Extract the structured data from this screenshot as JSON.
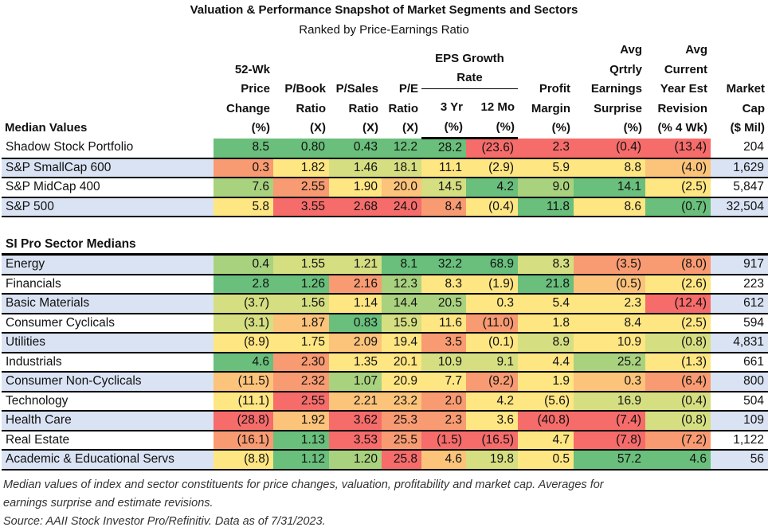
{
  "title": "Valuation & Performance Snapshot of Market Segments and Sectors",
  "subtitle": "Ranked by Price-Earnings Ratio",
  "chart_data": {
    "type": "table",
    "row_header_label": "Median Values",
    "columns": [
      "52-Wk\nPrice\nChange\n(%)",
      "P/Book\nRatio\n(X)",
      "P/Sales\nRatio\n(X)",
      "P/E\nRatio\n(X)",
      "3 Yr\n(%)",
      "12 Mo\n(%)",
      "Profit\nMargin\n(%)",
      "Avg\nQrtrly\nEarnings\nSurprise\n(%)",
      "Avg\nCurrent\nYear Est\nRevision\n(% 4 Wk)",
      "Market\nCap\n($ Mil)"
    ],
    "eps_group_label": "EPS Growth\nRate",
    "palette": {
      "G": "#69bf7b",
      "LG": "#a9d27f",
      "LY": "#d5df82",
      "Y": "#fee683",
      "LO": "#fcc37b",
      "O": "#f89b72",
      "R": "#f56c6b"
    },
    "segments": [
      {
        "label": "Shadow Stock Portfolio",
        "values": [
          "8.5",
          "0.80",
          "0.43",
          "12.2",
          "28.2",
          "(23.6)",
          "2.3",
          "(0.4)",
          "(13.4)",
          "204"
        ],
        "colors": [
          "G",
          "G",
          "G",
          "G",
          "G",
          "R",
          "R",
          "R",
          "R"
        ]
      },
      {
        "label": "S&P SmallCap 600",
        "values": [
          "0.3",
          "1.82",
          "1.46",
          "18.1",
          "11.1",
          "(2.9)",
          "5.9",
          "8.8",
          "(4.0)",
          "1,629"
        ],
        "colors": [
          "O",
          "Y",
          "LY",
          "LY",
          "Y",
          "Y",
          "Y",
          "Y",
          "LO"
        ]
      },
      {
        "label": "S&P MidCap 400",
        "values": [
          "7.6",
          "2.55",
          "1.90",
          "20.0",
          "14.5",
          "4.2",
          "9.0",
          "14.1",
          "(2.5)",
          "5,847"
        ],
        "colors": [
          "LG",
          "O",
          "Y",
          "LO",
          "LY",
          "G",
          "LG",
          "G",
          "Y"
        ]
      },
      {
        "label": "S&P 500",
        "values": [
          "5.8",
          "3.55",
          "2.68",
          "24.0",
          "8.4",
          "(0.4)",
          "11.8",
          "8.6",
          "(0.7)",
          "32,504"
        ],
        "colors": [
          "Y",
          "R",
          "R",
          "R",
          "O",
          "Y",
          "G",
          "Y",
          "G"
        ]
      }
    ],
    "sector_header": "SI Pro Sector Medians",
    "sectors": [
      {
        "label": "Energy",
        "values": [
          "0.4",
          "1.55",
          "1.21",
          "8.1",
          "32.2",
          "68.9",
          "8.3",
          "(3.5)",
          "(8.0)",
          "917"
        ],
        "colors": [
          "LG",
          "LY",
          "LY",
          "G",
          "G",
          "G",
          "LY",
          "O",
          "O"
        ]
      },
      {
        "label": "Financials",
        "values": [
          "2.8",
          "1.26",
          "2.16",
          "12.3",
          "8.3",
          "(1.9)",
          "21.8",
          "(0.5)",
          "(2.6)",
          "223"
        ],
        "colors": [
          "G",
          "G",
          "O",
          "LG",
          "Y",
          "Y",
          "G",
          "LO",
          "Y"
        ]
      },
      {
        "label": "Basic Materials",
        "values": [
          "(3.7)",
          "1.56",
          "1.14",
          "14.4",
          "20.5",
          "0.3",
          "5.4",
          "2.3",
          "(12.4)",
          "612"
        ],
        "colors": [
          "LY",
          "LY",
          "Y",
          "LG",
          "LG",
          "Y",
          "Y",
          "Y",
          "R"
        ]
      },
      {
        "label": "Consumer Cyclicals",
        "values": [
          "(3.1)",
          "1.87",
          "0.83",
          "15.9",
          "11.6",
          "(11.0)",
          "1.8",
          "8.4",
          "(2.5)",
          "594"
        ],
        "colors": [
          "LY",
          "LO",
          "G",
          "LY",
          "Y",
          "O",
          "Y",
          "Y",
          "Y"
        ]
      },
      {
        "label": "Utilities",
        "values": [
          "(8.9)",
          "1.75",
          "2.09",
          "19.4",
          "3.5",
          "(0.1)",
          "8.9",
          "10.9",
          "(0.8)",
          "4,831"
        ],
        "colors": [
          "Y",
          "Y",
          "LO",
          "Y",
          "O",
          "Y",
          "LY",
          "Y",
          "LY"
        ]
      },
      {
        "label": "Industrials",
        "values": [
          "4.6",
          "2.30",
          "1.35",
          "20.1",
          "10.9",
          "9.1",
          "4.4",
          "25.2",
          "(1.3)",
          "661"
        ],
        "colors": [
          "G",
          "O",
          "Y",
          "Y",
          "LY",
          "LY",
          "Y",
          "LG",
          "Y"
        ]
      },
      {
        "label": "Consumer Non-Cyclicals",
        "values": [
          "(11.5)",
          "2.32",
          "1.07",
          "20.9",
          "7.7",
          "(9.2)",
          "1.9",
          "0.3",
          "(6.4)",
          "800"
        ],
        "colors": [
          "LO",
          "O",
          "LG",
          "Y",
          "Y",
          "O",
          "Y",
          "LO",
          "O"
        ]
      },
      {
        "label": "Technology",
        "values": [
          "(11.1)",
          "2.55",
          "2.21",
          "23.2",
          "2.0",
          "4.2",
          "(5.6)",
          "16.9",
          "(0.4)",
          "504"
        ],
        "colors": [
          "Y",
          "R",
          "LO",
          "LO",
          "O",
          "Y",
          "Y",
          "LY",
          "LY"
        ]
      },
      {
        "label": "Health Care",
        "values": [
          "(28.8)",
          "1.92",
          "3.62",
          "25.3",
          "2.3",
          "3.6",
          "(40.8)",
          "(7.4)",
          "(0.8)",
          "109"
        ],
        "colors": [
          "R",
          "LO",
          "R",
          "O",
          "O",
          "Y",
          "R",
          "R",
          "LY"
        ]
      },
      {
        "label": "Real Estate",
        "values": [
          "(16.1)",
          "1.13",
          "3.53",
          "25.5",
          "(1.5)",
          "(16.5)",
          "4.7",
          "(7.8)",
          "(7.2)",
          "1,122"
        ],
        "colors": [
          "O",
          "G",
          "R",
          "O",
          "R",
          "R",
          "Y",
          "R",
          "O"
        ]
      },
      {
        "label": "Academic & Educational Servs",
        "values": [
          "(8.8)",
          "1.12",
          "1.20",
          "25.8",
          "4.6",
          "19.8",
          "0.5",
          "57.2",
          "4.6",
          "56"
        ],
        "colors": [
          "Y",
          "G",
          "LG",
          "R",
          "LO",
          "LY",
          "Y",
          "G",
          "G"
        ]
      }
    ]
  },
  "footnote": {
    "line1": "Median values of index and sector constituents for price changes, valuation, profitability and market cap. Averages for",
    "line2": "earnings surprise and estimate revisions.",
    "line3": "Source: AAII Stock Investor Pro/Refinitiv. Data as of 7/31/2023."
  }
}
